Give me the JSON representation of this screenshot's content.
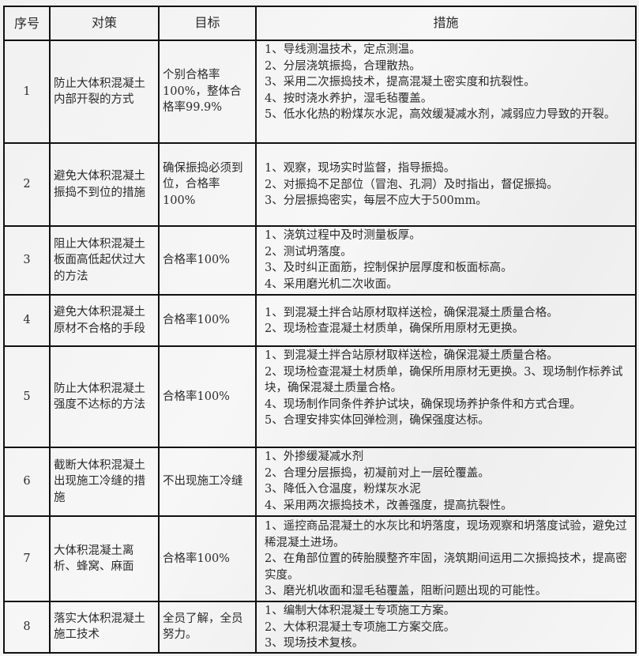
{
  "headers": {
    "no": "序号",
    "strategy": "对策",
    "goal": "目标",
    "measures": "措施"
  },
  "rows": [
    {
      "no": "1",
      "strategy": "防止大体积混凝土内部开裂的方式",
      "goal": "个别合格率100%，整体合格率99.9%",
      "measures": [
        "1、导线测温技术，定点测温。",
        "2、分层浇筑振捣，合理散热。",
        "3、采用二次振捣技术，提高混凝土密实度和抗裂性。",
        "4、按时浇水养护，湿毛毡覆盖。",
        "5、低水化热的粉煤灰水泥，高效缓凝减水剂，减弱应力导致的开裂。"
      ]
    },
    {
      "no": "2",
      "strategy": "避免大体积混凝土振捣不到位的措施",
      "goal": "确保振捣必须到位，合格率100%",
      "measures": [
        "1、观察，现场实时监督，指导振捣。",
        "2、对振捣不足部位（冒泡、孔洞）及时指出，督促振捣。",
        "3、分层振捣密实，每层不应大于500mm。"
      ]
    },
    {
      "no": "3",
      "strategy": "阻止大体积混凝土板面高低起伏过大的方法",
      "goal": "合格率100%",
      "measures": [
        "1、浇筑过程中及时测量板厚。",
        "2、测试坍落度。",
        "3、及时纠正面筋，控制保护层厚度和板面标高。",
        "4、采用磨光机二次收面。"
      ]
    },
    {
      "no": "4",
      "strategy": "避免大体积混凝土原材不合格的手段",
      "goal": "合格率100%",
      "measures": [
        "1、到混凝土拌合站原材取样送检，确保混凝土质量合格。",
        "2、现场检查混凝土材质单，确保所用原材无更换。"
      ]
    },
    {
      "no": "5",
      "strategy": "防止大体积混凝土强度不达标的方法",
      "goal": "合格率100%",
      "measures": [
        "1、到混凝土拌合站原材取样送检，确保混凝土质量合格。",
        "2、现场检查混凝土材质单，确保所用原材无更换。3、现场制作标养试块，确保混凝土质量合格。",
        "4、现场制作同条件养护试块，确保现场养护条件和方式合理。",
        "5、合理安排实体回弹检测，确保强度达标。"
      ]
    },
    {
      "no": "6",
      "strategy": "截断大体积混凝土出现施工冷缝的措施",
      "goal": "不出现施工冷缝",
      "measures": [
        "1、外掺缓凝减水剂",
        "2、合理分层振捣，初凝前对上一层砼覆盖。",
        "3、降低入仓温度，粉煤灰水泥",
        "4、采用两次振捣技术，改善强度，提高抗裂性。"
      ]
    },
    {
      "no": "7",
      "strategy": "大体积混凝土离析、蜂窝、麻面",
      "goal": "合格率100%",
      "measures": [
        "1、遥控商品混凝土的水灰比和坍落度，现场观察和坍落度试验，避免过稀混凝土进场。",
        "2、在角部位置的砖胎膜整齐牢固，浇筑期间运用二次振捣技术，提高密实度。",
        "3、磨光机收面和湿毛毡覆盖，阻断问题出现的可能性。"
      ]
    },
    {
      "no": "8",
      "strategy": "落实大体积混凝土施工技术",
      "goal": "全员了解，全员努力。",
      "measures": [
        "1、编制大体积混凝土专项施工方案。",
        "2、大体积混凝土专项施工方案交底。",
        "3、现场技术复核。"
      ]
    }
  ]
}
